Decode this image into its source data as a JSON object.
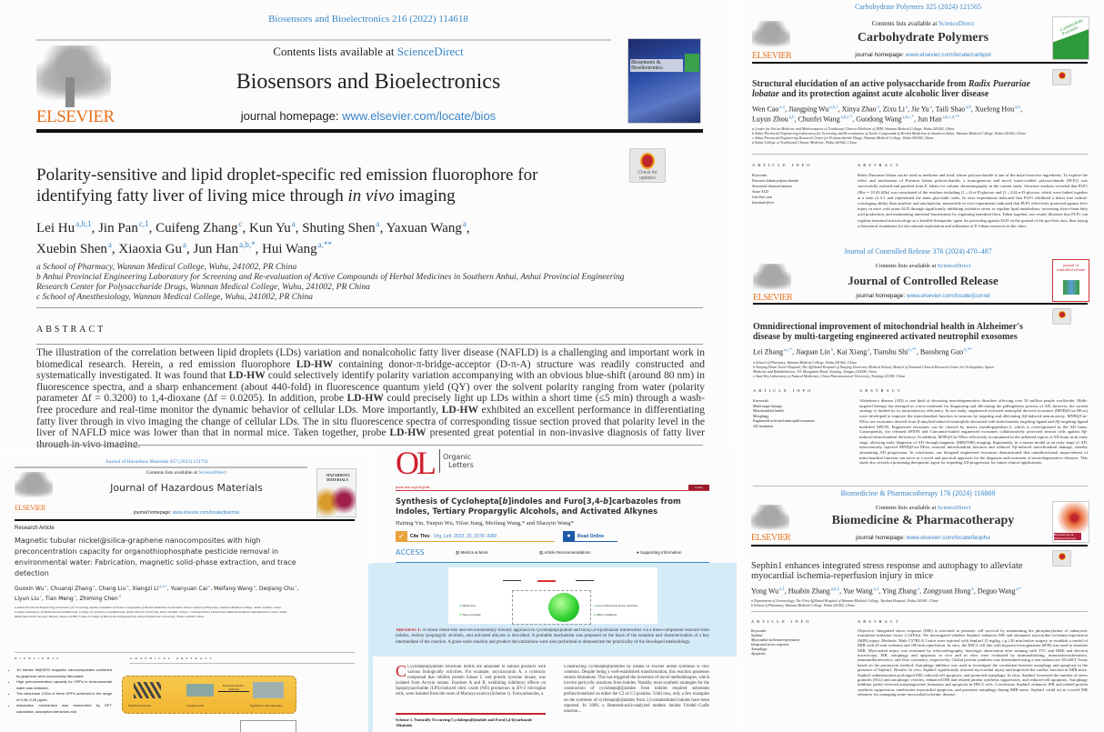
{
  "colors": {
    "link_blue": "#3a86c8",
    "elsevier_orange": "#e9711c",
    "ol_red": "#d1202f",
    "highlight_blue": "#d4ebf8"
  },
  "bios": {
    "journal_ref": "Biosensors and Bioelectronics 216 (2022) 114618",
    "contents_prefix": "Contents lists available at ",
    "sciencedirect": "ScienceDirect",
    "journal_title": "Biosensors and Bioelectronics",
    "homepage_prefix": "journal homepage: ",
    "homepage_url": "www.elsevier.com/locate/bios",
    "publisher": "ELSEVIER",
    "cover_label": "Biosensors & Bioelectronics",
    "check_updates": "Check for updates",
    "title_line1": "Polarity-sensitive and lipid droplet-specific red emission fluorophore for",
    "title_line2_a": "identifying fatty liver of living mice through ",
    "title_line2_em": "in vivo",
    "title_line2_b": " imaging",
    "authors": [
      [
        {
          "n": "Lei Hu",
          "s": "a,b,1"
        },
        {
          "n": "Jin Pan",
          "s": "c,1"
        },
        {
          "n": "Cuifeng Zhang",
          "s": "c"
        },
        {
          "n": "Kun Yu",
          "s": "a"
        },
        {
          "n": "Shuting Shen",
          "s": "a"
        },
        {
          "n": "Yaxuan Wang",
          "s": "a"
        }
      ],
      [
        {
          "n": "Xuebin Shen",
          "s": "a"
        },
        {
          "n": "Xiaoxia Gu",
          "s": "a"
        },
        {
          "n": "Jun Han",
          "s": "a,b,*"
        },
        {
          "n": "Hui Wang",
          "s": "a,**"
        }
      ]
    ],
    "affiliations": [
      "a School of Pharmacy, Wannan Medical College, Wuhu, 241002, PR China",
      "b Anhui Provincial Engineering Laboratory for Screening and Re-evaluation of Active Compounds of Herbal Medicines in Southern Anhui, Anhui Provincial Engineering",
      "Research Center for Polysaccharide Drugs, Wannan Medical College, Wuhu, 241002, PR China",
      "c School of Anesthesiology, Wannan Medical College, Wuhu, 241002, PR China"
    ],
    "abstract_heading": "ABSTRACT",
    "abstract": [
      "The illustration of the correlation between lipid droplets (LDs) variation and nonalcoholic fatty liver disease (NAFLD) is a challenging and important work in biomedical research. Herein, a red emission fluorophore ",
      "LD-HW",
      " containing donor-π-bridge-acceptor (D-π-A) structure was readily constructed and systematically investigated. It was found that ",
      "LD-HW",
      " could selectively identify polarity variation accompanying with an obvious blue-shift (around 80 nm) in fluorescence spectra, and a sharp enhancement (about 440-fold) in fluorescence quantum yield (QY) over the solvent polarity ranging from water (polarity parameter Δf = 0.3200) to 1,4-dioxane (Δf = 0.0205). In addition, probe ",
      "LD-HW",
      " could precisely light up LDs within a short time (≤5 min) through a wash-free procedure and real-time monitor the dynamic behavior of cellular LDs. More importantly, ",
      "LD-HW",
      " exhibited an excellent performance in differentiating fatty liver through in vivo imaging the change of cellular LDs. The in situ fluorescence spectra of corresponding tissue section proved that polarity level in the liver of NAFLD mice was lower than that in normal mice. Taken together, probe ",
      "LD-HW",
      " presented great potential in non-invasive diagnosis of fatty liver through in vivo imaging."
    ]
  },
  "carb": {
    "journal_ref": "Carbohydrate Polymers 325 (2024) 121565",
    "contents_prefix": "Contents lists available at ",
    "sciencedirect": "ScienceDirect",
    "journal_title": "Carbohydrate Polymers",
    "homepage_prefix": "journal homepage: ",
    "homepage_url": "www.elsevier.com/locate/carbpol",
    "publisher": "ELSEVIER",
    "cover_label": "Carbohydrate Polymers",
    "title_line1_a": "Structural elucidation of an active polysaccharide from ",
    "title_line1_em": "Radix Puerariae",
    "title_line2_em": "lobatae",
    "title_line2_b": " and its protection against acute alcoholic liver disease",
    "authors": [
      [
        {
          "n": "Wen Cao",
          "s": "a,1"
        },
        {
          "n": "Jiangping Wu",
          "s": "a,b,1"
        },
        {
          "n": "Xinya Zhao",
          "s": "a"
        },
        {
          "n": "Zixu Li",
          "s": "a"
        },
        {
          "n": "Jie Yu",
          "s": "a"
        },
        {
          "n": "Taili Shao",
          "s": "a,b"
        },
        {
          "n": "Xuefeng Hou",
          "s": "a,b"
        }
      ],
      [
        {
          "n": "Luyun Zhou",
          "s": "a,b"
        },
        {
          "n": "Chunfei Wang",
          "s": "a,b,c,*"
        },
        {
          "n": "Guodong Wang",
          "s": "a,b,c,*"
        },
        {
          "n": "Jun Han",
          "s": "a,b,c,d,**"
        }
      ]
    ],
    "affiliations": [
      "a Center for Xin'an Medicine and Modernization of Traditional Chinese Medicine of IHM, Wannan Medical College, Wuhu 241002, China",
      "b Anhui Provincial Engineering Laboratory for Screening and Re-evaluation of Active Compounds of Herbal Medicines in Southern Anhui, Wannan Medical College, Wuhu 241002, China",
      "c Anhui Provincial Engineering Research Center for Polysaccharide Drugs, Wannan Medical College, Wuhu 241002, China",
      "d Anhui College of Traditional Chinese Medicine, Wuhu 241002, China"
    ],
    "article_info": "ARTICLE INFO",
    "keywords": [
      "Keywords:",
      "Pueraria lobata polysaccharide",
      "Structural characterization",
      "Acute ALD",
      "Gut-liver axis",
      "Intestinal flora"
    ],
    "abstract_heading": "ABSTRACT",
    "abstract": "Radix Puerariae lobata can be used as medicine and food, whose polysaccharide is one of the main bioactive ingredients. To explore the effect and mechanism of Pueraria lobata polysaccharide, a homogeneous and novel water-soluble polysaccharide (PLP1) was successfully isolated and purified from P. lobata for column chromatography in the current study. Structure analysis revealed that PLP1 (Mw = 10.43 kDa) was constituted of the residues including (1→4)-α-D-glucose and (1→4,6)-α-D-glucose, which were linked together at a ratio of 5:1 and represented the main glycosidic units. In vitro experiments indicated that PLP1 exhibited a better free radical-scavenging ability than amylose and amylopectin, meanwhile in vivo experiments indicated that PLP1 effectively protected against liver injury in mice with acute ALD through significantly inhibiting oxidative stress to regulate lipid metabolism, increasing short-chain fatty acid production, and maintaining intestinal homeostasis by regulating intestinal flora. Taken together, our results illustrate that PLP1 can regulate intestinal microecology as a feasible therapeutic agent for protecting against ALD on the ground of the gut-liver axis, thus laying a theoretical foundation for the rational exploitation and utilization of P. lobata resources in the clinic."
  },
  "jcr": {
    "journal_ref": "Journal of Controlled Release 376 (2024) 470–487",
    "contents_prefix": "Contents lists available at ",
    "sciencedirect": "ScienceDirect",
    "journal_title": "Journal of Controlled Release",
    "homepage_prefix": "journal homepage: ",
    "homepage_url": "www.elsevier.com/locate/jconrel",
    "publisher": "ELSEVIER",
    "cover_label": "journal of controlled release",
    "title_line1": "Omnidirectional improvement of mitochondrial health in Alzheimer's",
    "title_line2": "disease by multi-targeting engineered activated neutrophil exosomes",
    "authors": [
      [
        {
          "n": "Lei Zhang",
          "s": "a,c,*"
        },
        {
          "n": "Jiaquan Lin",
          "s": "b"
        },
        {
          "n": "Kai Xiang",
          "s": "a"
        },
        {
          "n": "Tianshu Shi",
          "s": "b,**"
        },
        {
          "n": "Baosheng Guo",
          "s": "b,**"
        }
      ]
    ],
    "affiliations": [
      "a School of Pharmacy, Wannan Medical College, Wuhu 241002, China",
      "b Nanjing Drum Tower Hospital, The Affiliated Hospital of Nanjing University Medical School, Branch of National Clinical Research Center for Orthopedics, Sports",
      "Medicine and Rehabilitation, 321 Zhongshan Road, Nanjing, Jiangsu 210008, China",
      "c State Key Laboratory of Natural Medicines, China Pharmaceutical University, Nanjing 211198, China"
    ],
    "article_info": "ARTICLE INFO",
    "keywords": [
      "Keywords:",
      "Multi-target therapy",
      "Mitochondrial health",
      "Mitophagy",
      "Engineered activated neutrophil exosomes",
      "AD treatment"
    ],
    "abstract_heading": "ABSTRACT",
    "abstract": "Alzheimer's disease (AD) is one kind of devasting neurodegenerative disorders affecting over 50 million people worldwide. Multi-targeted therapy has emerged as a new treatment for diagnosing and alleviating the pathogenesis process of AD; however, the current strategy is limited by its unsatisfactory efficiency. In our study, engineered activated neutrophil derived exosomes (MNP@Cur-NExo) were developed to improve the mitochondrial function in neurons by targeting and alleviating Aβ-induced neurotoxicity. MNP@Cur-NExo are exosomes derived from β-amyloid-induced neutrophils decorated with mitochondria targeting ligand and Aβ targeting ligand modified SPION. Engineered exosomes can be cleaved by matrix metallopeptidase-2, which is overexpressed in the AD brain. Consequently, the released SPION and Curcumin-loaded engineered exosomes collaboratively protected neuron cells against Aβ-induced mitochondrial deficiency. In addition, MNP@Cur-NExo effectively accumulated in the inflamed region of AD brain at an early stage, allowing early diagnosis of AD through magnetic (MRI/NIR) imaging. Importantly, in a mouse model at an early stage of AD, intravenously injected MNP@Cur-NExo restored mitochondrial function and reduced Aβ-induced mitochondrial damage, thereby attenuating AD progression. In conclusion, our designed engineered exosomes demonstrated that omnidirectional improvement of mitochondrial function can serve as a novel and practical approach for the diagnosis and treatment of neurodegenerative diseases. This study also reveals a promising therapeutic agent for impeding AD progression for future clinical applications."
  },
  "biopha": {
    "journal_ref": "Biomedicine & Pharmacotherapy 176 (2024) 116869",
    "contents_prefix": "Contents lists available at ",
    "sciencedirect": "ScienceDirect",
    "journal_title": "Biomedicine & Pharmacotherapy",
    "homepage_prefix": "journal homepage: ",
    "homepage_url": "www.elsevier.com/locate/biopha",
    "publisher": "ELSEVIER",
    "cover_label": "Biomedicine & Pharmacotherapy",
    "title_line1": "Sephin1 enhances integrated stress response and autophagy to alleviate",
    "title_line2": "myocardial ischemia-reperfusion injury in mice",
    "authors": [
      [
        {
          "n": "Yong Wu",
          "s": "a,1"
        },
        {
          "n": "Huabin Zhang",
          "s": "a,b,1"
        },
        {
          "n": "Yue Wang",
          "s": "a,1"
        },
        {
          "n": "Ying Zhang",
          "s": "a"
        },
        {
          "n": "Zongyuan Hong",
          "s": "b"
        },
        {
          "n": "Deguo Wang",
          "s": "a,*"
        }
      ]
    ],
    "affiliations": [
      "a Department of Gerontology, The First Affiliated Hospital of Wannan Medical College, Yijishan Hospital, Wuhu 241001, China",
      "b School of Pharmacy, Wannan Medical College, Wuhu 241002, China"
    ],
    "article_info": "ARTICLE INFO",
    "keywords": [
      "Keywords:",
      "Sephin1",
      "Myocardial ischemia-reperfusion",
      "Integrated stress response",
      "Autophagy",
      "Apoptosis"
    ],
    "abstract_heading": "ABSTRACT",
    "abstract": "Objective: Integrated stress response (ISR) is activated to promote cell survival by maintaining the phosphorylation of eukaryotic translation initiation factor 2 (eIF2α). We investigated whether Sephin1 enhances ISR and attenuates myocardial ischemia-reperfusion (MIR) injury. Methods: Male C57BL/6 J mice were injected with Sephin1 (5 mg/kg, i.p.) 30 min before surgery to establish a model of MIR with 45 min ischemia and 180 min reperfusion. In vitro, the H9C2 cell line with hypoxia-reoxygenation (H/R) was used to simulate MIR. Myocardial injury was evaluated by echocardiography, histologic observation after staining with TTC and H&E and electron microscopy. ISR, autophagy and apoptosis in vivo and in vitro were evaluated by immunoblotting, immunohistochemistry, immunofluorescence, and flow cytometry, respectively. Global protein synthesis was determined using a non-radioactive SUnSET Assay based on the puromycin method. Autophagy inhibitor was used to investigate the correlation between autophagy and apoptosis in the presence of Sephin1. Results: In vivo, Sephin1 significantly restored myocardial injury and improved the cardiac function in MIR mice. Sephin1 administration prolonged ISR, reduced cell apoptosis, and promoted autophagy. In vitro, Sephin1 increased the number of stress granules (SGs) and autophagic vesicles, enhanced ISR and related protein synthesis suppression, and reduced cell apoptosis. Autophagy inhibitor partly reversed autophagosome formation and apoptosis in H9C2 cells. Conclusion: Sephin1 enhances ISR and related protein synthesis suppression, ameliorates myocardial apoptosis, and promotes autophagy during MIR stress. Sephin1 could act as a novel ISR enhancer for managing acute myocardial ischemic disease."
  },
  "jhm": {
    "journal_ref": "Journal of Hazardous Materials 457 (2023) 131756",
    "contents_prefix": "Contents lists available at ",
    "sciencedirect": "ScienceDirect",
    "journal_title": "Journal of Hazardous Materials",
    "homepage_prefix": "journal homepage: ",
    "homepage_url": "www.elsevier.com/locate/jhazmat",
    "publisher": "ELSEVIER",
    "cover_label": "HAZARDOUS MATERIALS",
    "article_type": "Research Article",
    "title": "Magnetic tubular nickel@silica-graphene nanocomposites with high preconcentration capacity for organothiophosphate pesticide removal in environmental water: Fabrication, magnetic solid-phase extraction, and trace detection",
    "authors": [
      [
        {
          "n": "Guoxin Wu",
          "s": "a"
        },
        {
          "n": "Chuanqi Zhang",
          "s": "a"
        },
        {
          "n": "Chang Liu",
          "s": "a"
        },
        {
          "n": "Xiangzi Li",
          "s": "a,b,*"
        },
        {
          "n": "Yuanyuan Cai",
          "s": "a"
        },
        {
          "n": "Meifang Wang",
          "s": "a"
        },
        {
          "n": "Deqiang Chu",
          "s": "c"
        }
      ],
      [
        {
          "n": "Liyun Liu",
          "s": "c"
        },
        {
          "n": "Tian Meng",
          "s": "c"
        },
        {
          "n": "Zhiming Chen",
          "s": "d"
        }
      ]
    ],
    "affiliations": [
      "a Anhui Provincial Engineering Laboratory for Screening and Re-evaluation of Active Compounds of Herbal Medicines in Southern Anhui, School of Pharmacy, Wannan Medical College, Wuhu 241002, China",
      "b Anhui Laboratory of Molecule-based Materials, College of Chemistry and Materials, Anhui Normal University, Wuhu 241002, China  c Criminal Police Detachment Material Evidence Identification Center, Wuhu Municipal Public Security Bureau, Wuhu 241000, China  d College of Biochemical Engineering, Anhui Polytechnic University, Wuhu 241000, China"
    ],
    "highlights_heading": "HIGHLIGHTS",
    "highlights": [
      "1D tubular Ni@SiO2 magnetic nanocomposites combined by graphene were successfully fabricated.",
      "High preconcentration capacity for OPPs in environmental water was obtained.",
      "The ultra-trace LODs of three OPPs achieved in the range of 0.09–0.25 μg/mL.",
      "Adsorption mechanism was researched by DFT calculation, adsorption behaviors and"
    ],
    "graphical_heading": "GRAPHICAL ABSTRACT",
    "graphic_labels": [
      "Ni@SiO2 nanotubes",
      "Graphene oxide",
      "Hydrazine hydrate / Ammonia",
      "Ni@SiO2-G nanocomposites"
    ]
  },
  "ol": {
    "logo_mark": "OL",
    "logo_text_1": "Organic",
    "logo_text_2": "Letters",
    "doi": "pubs.acs.org/OrgLett",
    "badge": "Letter",
    "title_1a": "Synthesis of Cyclohepta[",
    "title_1em": "b",
    "title_1b": "]indoles and Furo[3,4-",
    "title_1em2": "b",
    "title_1c": "]carbazoles from",
    "title_2": "Indoles, Tertiary Propargylic Alcohols, and Activated Alkynes",
    "authors": "Haiting Yin, Yunjun Wu, Yifan Jiang, Meifang Wang,* and Shaoyin Wang*",
    "cite_label": "Cite This:",
    "cite_value": "Org. Lett. 2023, 25, 3078−3082",
    "read_online": "Read Online",
    "access": "ACCESS",
    "metrics": "Metrics & More",
    "recommendations": "Article Recommendations",
    "supporting": "Supporting Information",
    "abstract_label": "ABSTRACT:",
    "abstract": "A robust metal-free and environmentally friendly approach to cyclohepta[b]indole and furo[3,4-b]carbazole frameworks via a three-component reaction from indoles, tertiary propargylic alcohols, and activated alkynes is described. A probable mechanism was proposed on the basis of the isolation and characterization of a key intermediate of the reaction. A gram-scale reaction and product derivatizations were also performed to demonstrate the practicality of the developed methodology.",
    "graphic_items": [
      "Metal-free",
      "Step-economic",
      "Good functional group tolerance",
      "Mild conditions"
    ],
    "body_left": "Cyclohepta[b]indole structural motifs are abundant in natural products with various biologically activities. For example, arcyriacyanin A, a cytotoxic compound that inhibits protein kinase C and protein tyrosine kinase, was isolated from Arcyria nutans. Exotines A and B, exhibiting inhibitory effects on lipopolysaccharide (LPS)-induced nitric oxide (NO) production in BV-2 microglial cells, were isolated from the roots of Murraya exotica (Scheme 1). Furocarbazoles, a",
    "body_right": "Constructing cyclohepta[b]indoles by means of Fischer indole synthesis is very common. Despite being a well-established transformation, this reaction possesses certain limitations. This has triggered the invention of novel methodologies, which involve pericyclic reactions from indoles. Notably, most synthetic strategies for the construction of cyclohepta[b]indoles from indoles required substrates prefunctionalized on either the C2 or C3 position. Until now, only a few examples on the synthesis of cyclohepta[b]indoles from 2,3-unsubstituted indoles have been reported. In 2009, a Brønsted-acid-catalyzed tandem double Friedel−Crafts reaction...",
    "scheme_caption": "Scheme 1. Naturally Occurring Cyclohepta[b]indole and Furo[3,4-b]carbazole Alkaloids"
  }
}
